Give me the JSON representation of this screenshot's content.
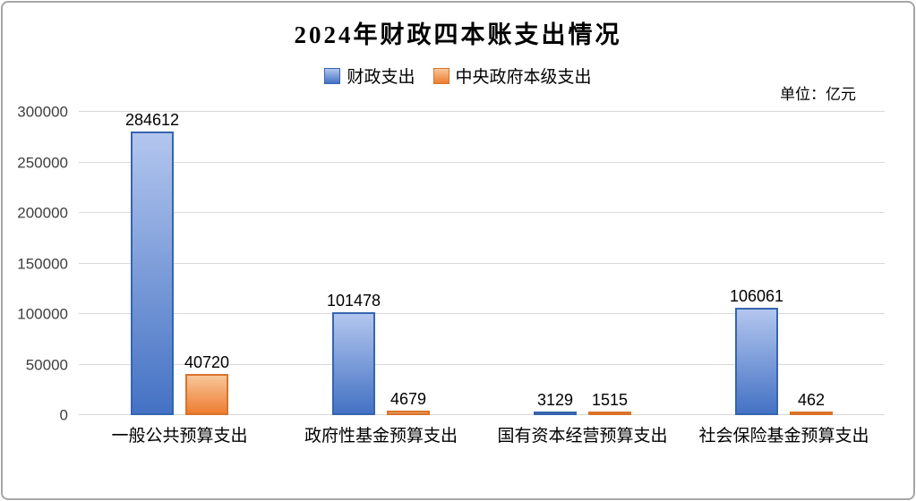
{
  "frame": {
    "border_color": "#a6a6a6",
    "background": "#ffffff"
  },
  "unit_label": "单位：亿元",
  "chart_data": {
    "type": "bar",
    "title": "2024年财政四本账支出情况",
    "categories": [
      "一般公共预算支出",
      "政府性基金预算支出",
      "国有资本经营预算支出",
      "社会保险基金预算支出"
    ],
    "series": [
      {
        "name": "财政支出",
        "values": [
          284612,
          101478,
          3129,
          106061
        ],
        "fill_top": "#b3c6ee",
        "fill_bottom": "#4472c4",
        "border": "#3565af"
      },
      {
        "name": "中央政府本级支出",
        "values": [
          40720,
          4679,
          1515,
          462
        ],
        "fill_top": "#f8c699",
        "fill_bottom": "#ed7d31",
        "border": "#d9732a"
      }
    ],
    "ylim": [
      0,
      300000
    ],
    "yticks": [
      0,
      50000,
      100000,
      150000,
      200000,
      250000,
      300000
    ],
    "unit": "亿元",
    "grid": true,
    "legend_position": "top",
    "gridline_color": "#d9d9d9",
    "axis_text_color": "#404040",
    "data_label_color": "#000000"
  }
}
